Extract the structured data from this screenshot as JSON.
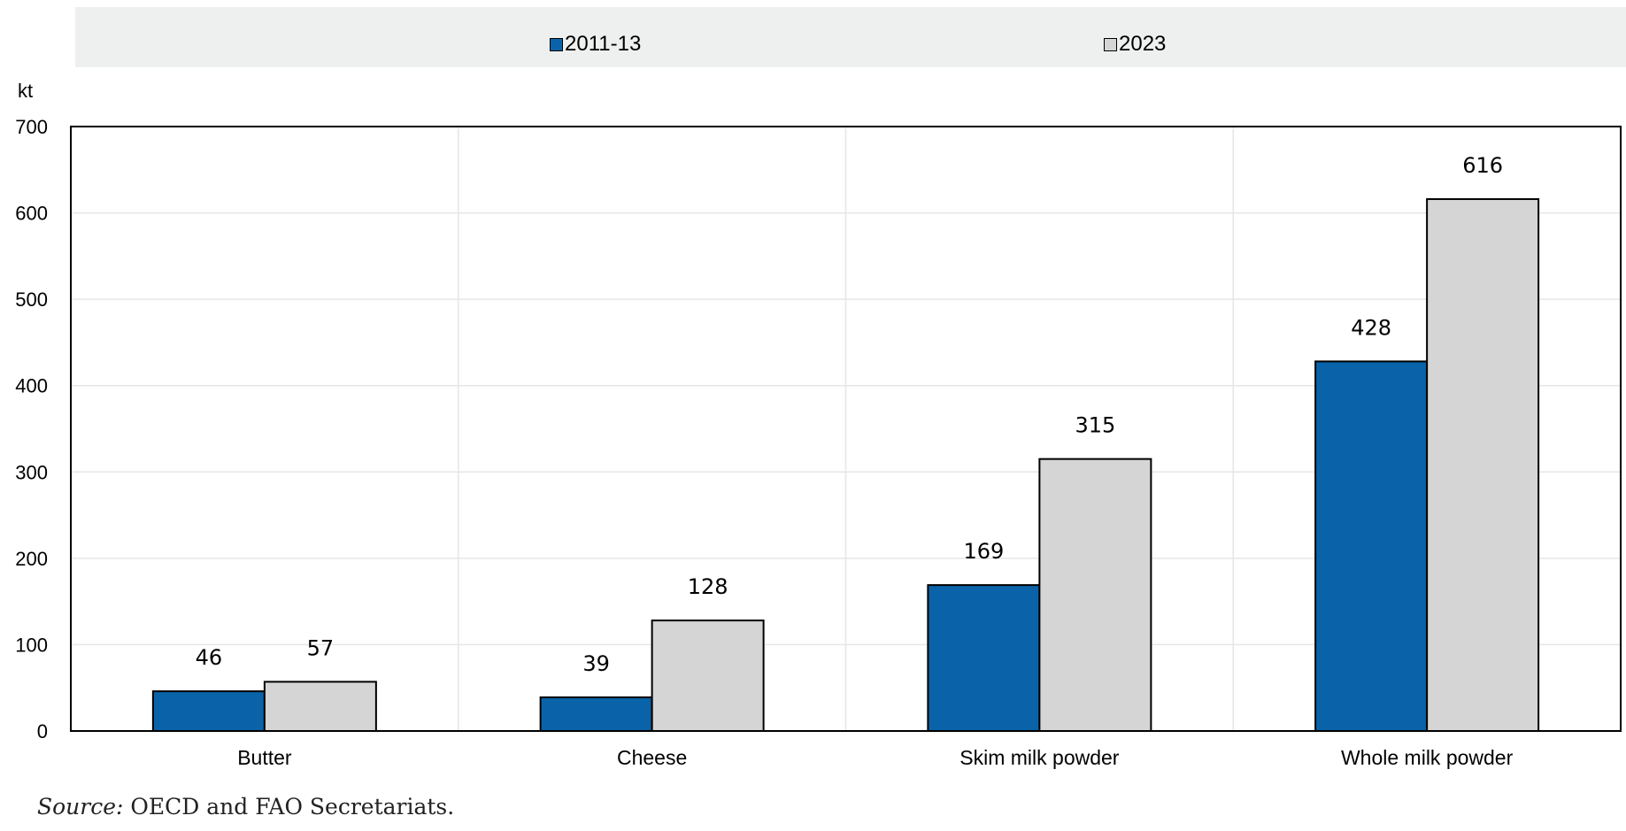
{
  "chart_data": {
    "type": "bar",
    "title": "",
    "xlabel": "",
    "ylabel": "kt",
    "categories": [
      "Butter",
      "Cheese",
      "Skim milk powder",
      "Whole milk powder"
    ],
    "series": [
      {
        "name": "2011-13",
        "values": [
          46,
          39,
          169,
          428
        ],
        "color": "#0a63a8"
      },
      {
        "name": "2023",
        "values": [
          57,
          128,
          315,
          616
        ],
        "color": "#d5d5d5"
      }
    ],
    "ylim": [
      0,
      700
    ],
    "yticks": [
      "0",
      "100",
      "200",
      "300",
      "400",
      "500",
      "600",
      "700"
    ],
    "data_labels": true,
    "grid": true,
    "legend": "top"
  },
  "source": {
    "label": "Source:",
    "text": "OECD and FAO Secretariats."
  }
}
